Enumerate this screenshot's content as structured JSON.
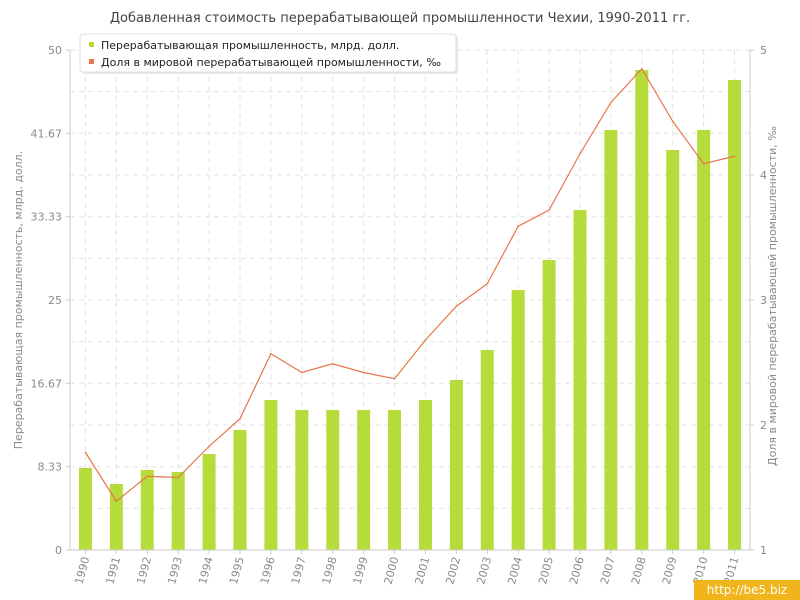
{
  "chart_data": {
    "type": "bar",
    "title": "Добавленная стоимость перерабатывающей промышленности Чехии, 1990-2011 гг.",
    "ylabel": "Перерабатывающая промышленность, млрд. долл.",
    "y2label": "Доля в мировой перерабатывающей промышленности, ‰",
    "categories": [
      "1990",
      "1991",
      "1992",
      "1993",
      "1994",
      "1995",
      "1996",
      "1997",
      "1998",
      "1999",
      "2000",
      "2001",
      "2002",
      "2003",
      "2004",
      "2005",
      "2006",
      "2007",
      "2008",
      "2009",
      "2010",
      "2011"
    ],
    "ylim": [
      0,
      50
    ],
    "y2lim": [
      1,
      5
    ],
    "yticks": [
      "0",
      "8.33",
      "16.67",
      "25",
      "33.33",
      "41.67",
      "50"
    ],
    "y2ticks": [
      "1",
      "2",
      "3",
      "4",
      "5"
    ],
    "grid": true,
    "legend_position": "top-left",
    "series": [
      {
        "name": "Перерабатывающая промышленность, млрд. долл.",
        "type": "bar",
        "axis": "left",
        "color": "#b5dc3a",
        "values": [
          8.2,
          6.6,
          8.0,
          7.8,
          9.6,
          12.0,
          15.0,
          14.0,
          14.0,
          14.0,
          14.0,
          15.0,
          17.0,
          20.0,
          26.0,
          29.0,
          34.0,
          42.0,
          48.0,
          40.0,
          42.0,
          47.0
        ]
      },
      {
        "name": "Доля в мировой перерабатывающей промышленности, ‰",
        "type": "line",
        "axis": "right",
        "color": "#e8764a",
        "values": [
          1.78,
          1.39,
          1.59,
          1.58,
          1.83,
          2.05,
          2.57,
          2.42,
          2.49,
          2.42,
          2.37,
          2.68,
          2.95,
          3.13,
          3.59,
          3.72,
          4.17,
          4.58,
          4.85,
          4.43,
          4.09,
          4.15
        ]
      }
    ]
  },
  "watermark": {
    "text": "http://be5.biz"
  },
  "colors": {
    "grid": "#e3e3e3",
    "axis": "#cccccc",
    "tick_text": "#8a8a8a",
    "title_text": "#444444"
  }
}
